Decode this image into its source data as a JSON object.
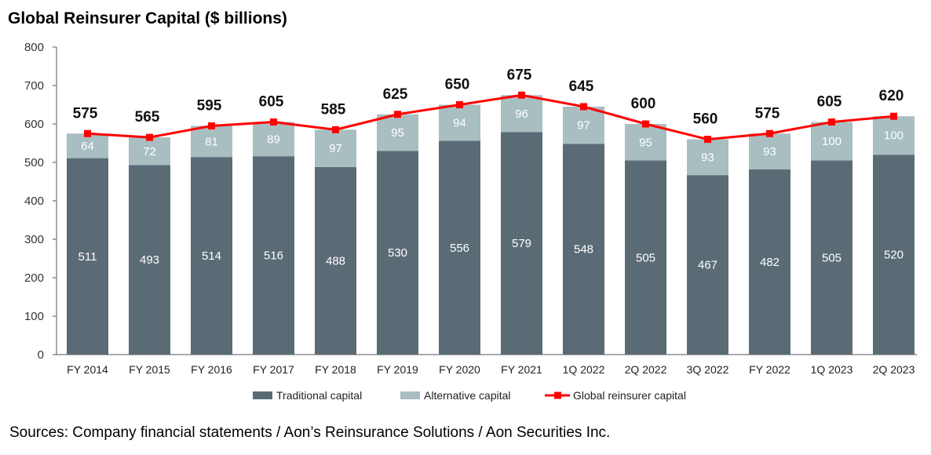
{
  "chart_data": {
    "type": "bar",
    "title": "Global Reinsurer Capital ($ billions)",
    "source": "Sources: Company financial statements / Aon’s Reinsurance Solutions / Aon Securities Inc.",
    "categories": [
      "FY 2014",
      "FY 2015",
      "FY 2016",
      "FY 2017",
      "FY 2018",
      "FY 2019",
      "FY 2020",
      "FY 2021",
      "1Q 2022",
      "2Q 2022",
      "3Q 2022",
      "FY 2022",
      "1Q 2023",
      "2Q 2023"
    ],
    "series": [
      {
        "name": "Traditional capital",
        "type": "bar",
        "stacked": true,
        "color": "#5b6b76",
        "values": [
          511,
          493,
          514,
          516,
          488,
          530,
          556,
          579,
          548,
          505,
          467,
          482,
          505,
          520
        ]
      },
      {
        "name": "Alternative capital",
        "type": "bar",
        "stacked": true,
        "color": "#a8bec1",
        "values": [
          64,
          72,
          81,
          89,
          97,
          95,
          94,
          96,
          97,
          95,
          93,
          93,
          100,
          100
        ]
      },
      {
        "name": "Global reinsurer capital",
        "type": "line",
        "color": "#ff0000",
        "values": [
          575,
          565,
          595,
          605,
          585,
          625,
          650,
          675,
          645,
          600,
          560,
          575,
          605,
          620
        ]
      }
    ],
    "ylim": [
      0,
      800
    ],
    "yticks": [
      0,
      100,
      200,
      300,
      400,
      500,
      600,
      700,
      800
    ],
    "grid": false,
    "legend_position": "bottom"
  }
}
